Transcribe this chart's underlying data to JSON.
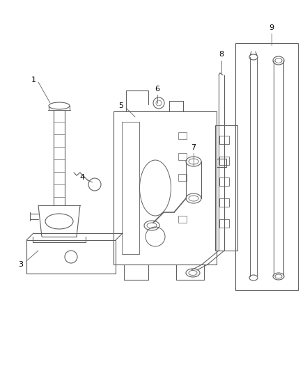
{
  "background_color": "#ffffff",
  "line_color": "#606060",
  "label_color": "#000000",
  "fig_width": 4.38,
  "fig_height": 5.33,
  "dpi": 100,
  "label_fontsize": 8
}
